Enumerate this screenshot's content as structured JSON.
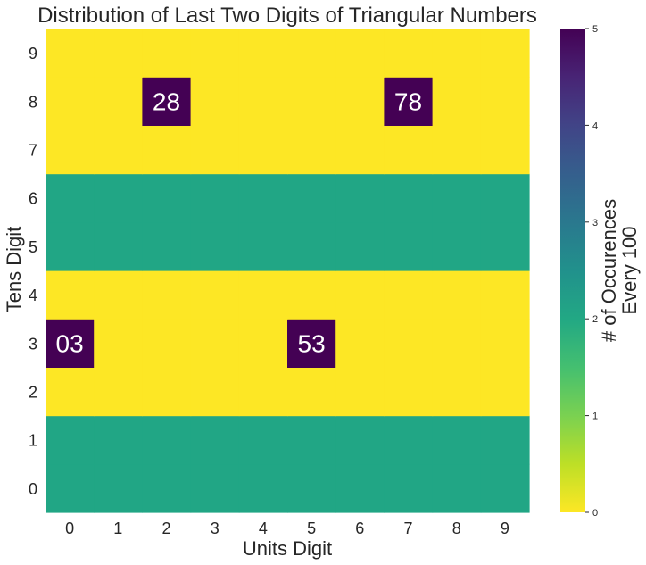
{
  "chart_data": {
    "type": "heatmap",
    "title": "Distribution of Last Two Digits of Triangular Numbers",
    "xlabel": "Units Digit",
    "ylabel": "Tens Digit",
    "x_categories": [
      "0",
      "1",
      "2",
      "3",
      "4",
      "5",
      "6",
      "7",
      "8",
      "9"
    ],
    "y_categories": [
      "0",
      "1",
      "2",
      "3",
      "4",
      "5",
      "6",
      "7",
      "8",
      "9"
    ],
    "values_by_tens_digit": [
      [
        2,
        2,
        2,
        2,
        2,
        2,
        2,
        2,
        2,
        2
      ],
      [
        2,
        2,
        2,
        2,
        2,
        2,
        2,
        2,
        2,
        2
      ],
      [
        0,
        0,
        0,
        0,
        0,
        0,
        0,
        0,
        0,
        0
      ],
      [
        5,
        0,
        0,
        0,
        0,
        5,
        0,
        0,
        0,
        0
      ],
      [
        0,
        0,
        0,
        0,
        0,
        0,
        0,
        0,
        0,
        0
      ],
      [
        2,
        2,
        2,
        2,
        2,
        2,
        2,
        2,
        2,
        2
      ],
      [
        2,
        2,
        2,
        2,
        2,
        2,
        2,
        2,
        2,
        2
      ],
      [
        0,
        0,
        0,
        0,
        0,
        0,
        0,
        0,
        0,
        0
      ],
      [
        0,
        0,
        5,
        0,
        0,
        0,
        0,
        5,
        0,
        0
      ],
      [
        0,
        0,
        0,
        0,
        0,
        0,
        0,
        0,
        0,
        0
      ]
    ],
    "annotations": [
      {
        "tens": 3,
        "units": 0,
        "text": "03"
      },
      {
        "tens": 3,
        "units": 5,
        "text": "53"
      },
      {
        "tens": 8,
        "units": 2,
        "text": "28"
      },
      {
        "tens": 8,
        "units": 7,
        "text": "78"
      }
    ],
    "colorbar": {
      "label_lines": [
        "# of Occurences",
        "Every 100"
      ],
      "range": [
        0,
        5
      ],
      "ticks": [
        "0",
        "1",
        "2",
        "3",
        "4",
        "5"
      ],
      "colormap": "viridis_r",
      "colors": {
        "0": "#fde725",
        "2": "#21a685",
        "5": "#440154"
      }
    }
  }
}
